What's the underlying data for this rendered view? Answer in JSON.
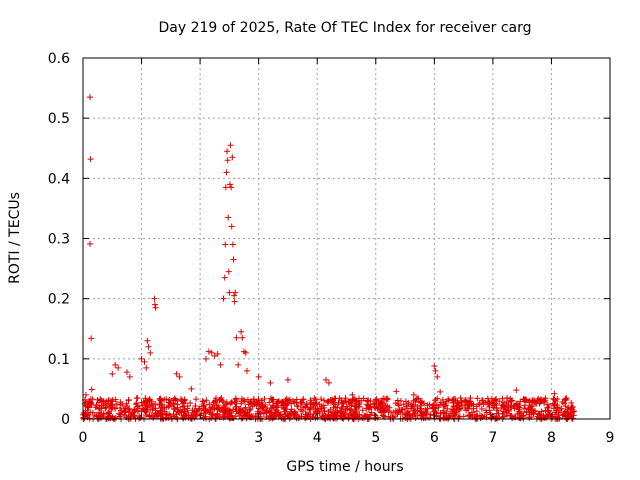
{
  "chart_data": {
    "type": "scatter",
    "title": "Day 219 of 2025, Rate Of TEC Index for receiver carg",
    "xlabel": "GPS time / hours",
    "ylabel": "ROTI / TECUs",
    "xlim": [
      0,
      9
    ],
    "ylim": [
      0,
      0.6
    ],
    "x_ticks": [
      "0",
      "1",
      "2",
      "3",
      "4",
      "5",
      "6",
      "7",
      "8",
      "9"
    ],
    "y_ticks": [
      "0",
      "0.1",
      "0.2",
      "0.3",
      "0.4",
      "0.5",
      "0.6"
    ],
    "grid": true,
    "marker": "+",
    "series_color": "#e00000",
    "series": [
      {
        "name": "ROTI",
        "points": [
          [
            0.12,
            0.535
          ],
          [
            0.13,
            0.432
          ],
          [
            0.12,
            0.291
          ],
          [
            0.14,
            0.134
          ],
          [
            0.15,
            0.049
          ],
          [
            0.05,
            0.04
          ],
          [
            0.55,
            0.09
          ],
          [
            0.6,
            0.085
          ],
          [
            0.5,
            0.075
          ],
          [
            0.75,
            0.078
          ],
          [
            0.8,
            0.07
          ],
          [
            1.0,
            0.1
          ],
          [
            1.05,
            0.095
          ],
          [
            1.08,
            0.085
          ],
          [
            1.1,
            0.13
          ],
          [
            1.12,
            0.12
          ],
          [
            1.15,
            0.11
          ],
          [
            1.22,
            0.2
          ],
          [
            1.23,
            0.19
          ],
          [
            1.24,
            0.185
          ],
          [
            1.6,
            0.075
          ],
          [
            1.65,
            0.07
          ],
          [
            1.85,
            0.05
          ],
          [
            2.1,
            0.1
          ],
          [
            2.15,
            0.112
          ],
          [
            2.2,
            0.11
          ],
          [
            2.25,
            0.105
          ],
          [
            2.3,
            0.108
          ],
          [
            2.35,
            0.09
          ],
          [
            2.4,
            0.2
          ],
          [
            2.42,
            0.235
          ],
          [
            2.43,
            0.29
          ],
          [
            2.44,
            0.385
          ],
          [
            2.45,
            0.41
          ],
          [
            2.46,
            0.445
          ],
          [
            2.47,
            0.43
          ],
          [
            2.48,
            0.335
          ],
          [
            2.49,
            0.245
          ],
          [
            2.5,
            0.21
          ],
          [
            2.51,
            0.39
          ],
          [
            2.52,
            0.455
          ],
          [
            2.53,
            0.385
          ],
          [
            2.54,
            0.32
          ],
          [
            2.55,
            0.435
          ],
          [
            2.56,
            0.29
          ],
          [
            2.57,
            0.265
          ],
          [
            2.58,
            0.205
          ],
          [
            2.59,
            0.195
          ],
          [
            2.6,
            0.21
          ],
          [
            2.62,
            0.135
          ],
          [
            2.65,
            0.09
          ],
          [
            2.7,
            0.145
          ],
          [
            2.72,
            0.135
          ],
          [
            2.75,
            0.112
          ],
          [
            2.78,
            0.11
          ],
          [
            2.8,
            0.08
          ],
          [
            3.0,
            0.07
          ],
          [
            3.2,
            0.06
          ],
          [
            3.5,
            0.065
          ],
          [
            4.15,
            0.065
          ],
          [
            4.2,
            0.06
          ],
          [
            4.6,
            0.04
          ],
          [
            5.35,
            0.046
          ],
          [
            5.65,
            0.04
          ],
          [
            6.0,
            0.088
          ],
          [
            6.02,
            0.08
          ],
          [
            6.05,
            0.07
          ],
          [
            6.1,
            0.045
          ],
          [
            6.45,
            0.035
          ],
          [
            7.4,
            0.048
          ],
          [
            8.05,
            0.042
          ]
        ],
        "baseline_band": {
          "x_range": [
            0,
            8.4
          ],
          "y_range": [
            0.0,
            0.035
          ]
        }
      }
    ]
  }
}
